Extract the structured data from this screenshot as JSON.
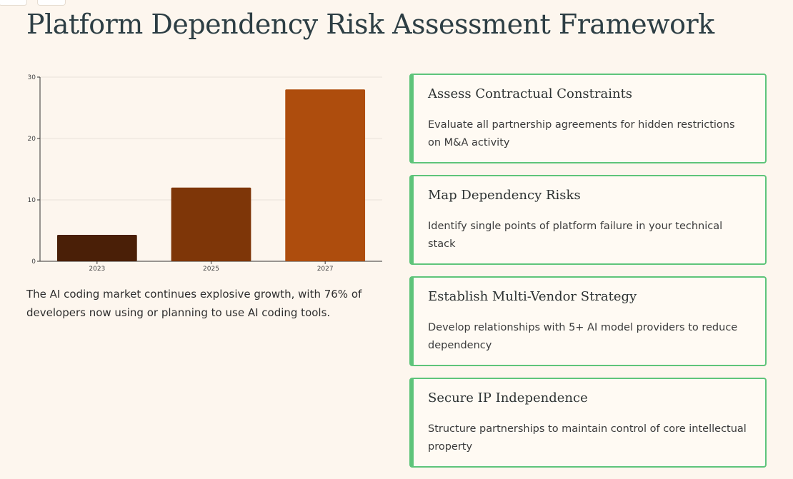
{
  "page": {
    "title": "Platform Dependency Risk Assessment Framework"
  },
  "chart_data": {
    "type": "bar",
    "categories": [
      "2023",
      "2025",
      "2027"
    ],
    "values": [
      4.3,
      12,
      28
    ],
    "bar_colors": [
      "#4a1f07",
      "#7e3608",
      "#ae4d0d"
    ],
    "ylim": [
      0,
      30
    ],
    "yticks": [
      0,
      10,
      20,
      30
    ],
    "grid": true,
    "legend": "none"
  },
  "chart_caption": "The AI coding market continues explosive growth, with 76% of developers now using or planning to use AI coding tools.",
  "cards": [
    {
      "title": "Assess Contractual Constraints",
      "description": "Evaluate all partnership agreements for hidden restrictions on M&A activity"
    },
    {
      "title": "Map Dependency Risks",
      "description": "Identify single points of platform failure in your technical stack"
    },
    {
      "title": "Establish Multi-Vendor Strategy",
      "description": "Develop relationships with 5+ AI model providers to reduce dependency"
    },
    {
      "title": "Secure IP Independence",
      "description": "Structure partnerships to maintain control of core intellectual property"
    }
  ],
  "colors": {
    "background": "#fdf6ee",
    "card_accent": "#5ec47a",
    "title_text": "#2d3e44"
  }
}
